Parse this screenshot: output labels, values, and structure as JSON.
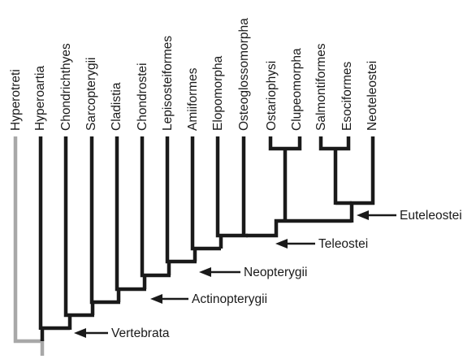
{
  "taxa": [
    "Hyperotreti",
    "Hyperoartia",
    "Chondrichthyes",
    "Sarcopterygii",
    "Cladistia",
    "Chondrostei",
    "Lepisosteiformes",
    "Amiiformes",
    "Elopomorpha",
    "Osteoglossomorpha",
    "Ostariophysi",
    "Clupeomorpha",
    "Salmontiformes",
    "Esociformes",
    "Neoteleostei"
  ],
  "node_labels": {
    "vertebrata": "Vertebrata",
    "actinopterygii": "Actinopterygii",
    "neopterygii": "Neopterygii",
    "teleostei": "Teleostei",
    "euteleostei": "Euteleostei"
  },
  "colors": {
    "branch": "#1a1a1a",
    "outgroup_branch": "#a8a8a8",
    "text": "#1a1a1a"
  }
}
